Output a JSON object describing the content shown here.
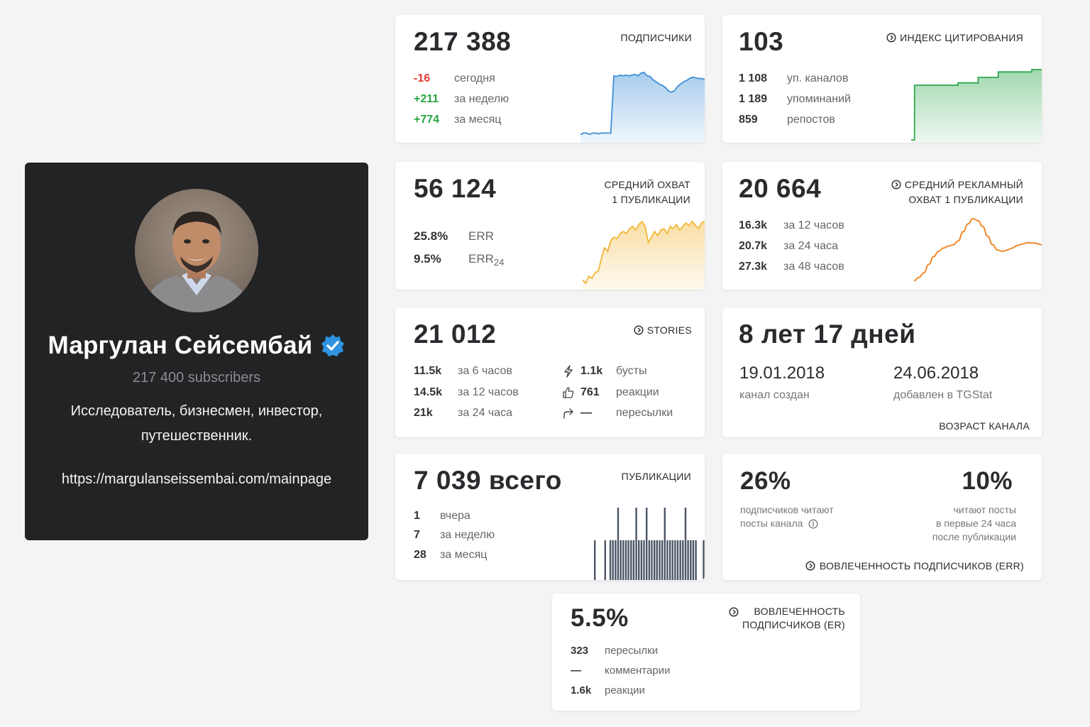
{
  "profile": {
    "name": "Маргулан Сейсембай",
    "subscribers": "217 400 subscribers",
    "description": "Исследователь, бизнесмен, инвестор, путешественник.",
    "link": "https://margulanseissembai.com/mainpage"
  },
  "subscribers": {
    "value": "217 388",
    "label": "ПОДПИСЧИКИ",
    "rows": [
      {
        "value": "-16",
        "text": "сегодня"
      },
      {
        "value": "+211",
        "text": "за неделю"
      },
      {
        "value": "+774",
        "text": "за месяц"
      }
    ]
  },
  "citation": {
    "value": "103",
    "label": "ИНДЕКС ЦИТИРОВАНИЯ",
    "rows": [
      {
        "value": "1 108",
        "text": "уп. каналов"
      },
      {
        "value": "1 189",
        "text": "упоминаний"
      },
      {
        "value": "859",
        "text": "репостов"
      }
    ]
  },
  "reach": {
    "value": "56 124",
    "label_line1": "СРЕДНИЙ ОХВАТ",
    "label_line2": "1 ПУБЛИКАЦИИ",
    "rows": [
      {
        "value": "25.8%",
        "text": "ERR"
      },
      {
        "value": "9.5%",
        "text": "ERR",
        "sub": "24"
      }
    ]
  },
  "ad_reach": {
    "value": "20 664",
    "label_line1": "СРЕДНИЙ РЕКЛАМНЫЙ",
    "label_line2": "ОХВАТ 1 ПУБЛИКАЦИИ",
    "rows": [
      {
        "value": "16.3k",
        "text": "за 12 часов"
      },
      {
        "value": "20.7k",
        "text": "за 24 часа"
      },
      {
        "value": "27.3k",
        "text": "за 48 часов"
      }
    ]
  },
  "stories": {
    "value": "21 012",
    "label": "STORIES",
    "rows": [
      {
        "value": "11.5k",
        "text": "за 6 часов"
      },
      {
        "value": "14.5k",
        "text": "за 12 часов"
      },
      {
        "value": "21k",
        "text": "за 24 часа"
      }
    ],
    "stats": [
      {
        "icon": "lightning-icon",
        "value": "1.1k",
        "text": "бусты"
      },
      {
        "icon": "thumbs-up-icon",
        "value": "761",
        "text": "реакции"
      },
      {
        "icon": "share-arrow-icon",
        "value": "—",
        "text": "пересылки"
      }
    ]
  },
  "age": {
    "value": "8 лет 17 дней",
    "created_date": "19.01.2018",
    "created_text": "канал создан",
    "added_date": "24.06.2018",
    "added_text": "добавлен в TGStat",
    "label": "ВОЗРАСТ КАНАЛА"
  },
  "publications": {
    "value": "7 039 всего",
    "label": "ПУБЛИКАЦИИ",
    "rows": [
      {
        "value": "1",
        "text": "вчера"
      },
      {
        "value": "7",
        "text": "за неделю"
      },
      {
        "value": "28",
        "text": "за месяц"
      }
    ]
  },
  "err": {
    "left_value": "26%",
    "left_line1": "подписчиков читают",
    "left_line2": "посты канала",
    "right_value": "10%",
    "right_line1": "читают посты",
    "right_line2": "в первые 24 часа",
    "right_line3": "после публикации",
    "label": "ВОВЛЕЧЕННОСТЬ ПОДПИСЧИКОВ (ERR)"
  },
  "er": {
    "value": "5.5%",
    "label_line1": "ВОВЛЕЧЕННОСТЬ",
    "label_line2": "ПОДПИСЧИКОВ (ER)",
    "rows": [
      {
        "value": "323",
        "text": "пересылки"
      },
      {
        "value": "—",
        "text": "комментарии"
      },
      {
        "value": "1.6k",
        "text": "реакции"
      }
    ]
  },
  "colors": {
    "blue": "#3d8fd6",
    "green": "#2fa84f",
    "yellow": "#f2b637",
    "orange": "#ef8a2a",
    "bars": "#4a5566"
  },
  "sparklines": {
    "subscribers": [
      0.08,
      0.1,
      0.1,
      0.08,
      0.1,
      0.1,
      0.09,
      0.1,
      0.1,
      0.1,
      0.1,
      0.94,
      0.93,
      0.95,
      0.94,
      0.95,
      0.94,
      0.95,
      0.96,
      0.94,
      0.98,
      0.99,
      0.94,
      0.93,
      0.88,
      0.85,
      0.82,
      0.8,
      0.77,
      0.72,
      0.7,
      0.72,
      0.78,
      0.82,
      0.85,
      0.87,
      0.9,
      0.92,
      0.91,
      0.9,
      0.9,
      0.89
    ],
    "citation": [
      0.0,
      0.7,
      0.7,
      0.7,
      0.7,
      0.7,
      0.7,
      0.7,
      0.7,
      0.7,
      0.7,
      0.7,
      0.7,
      0.7,
      0.73,
      0.73,
      0.73,
      0.73,
      0.73,
      0.73,
      0.8,
      0.8,
      0.8,
      0.8,
      0.8,
      0.8,
      0.87,
      0.87,
      0.87,
      0.87,
      0.87,
      0.87,
      0.87,
      0.87,
      0.87,
      0.87,
      0.9,
      0.9,
      0.9,
      0.9
    ],
    "reach": [
      0.1,
      0.05,
      0.15,
      0.12,
      0.2,
      0.22,
      0.4,
      0.55,
      0.5,
      0.65,
      0.7,
      0.68,
      0.75,
      0.78,
      0.75,
      0.82,
      0.85,
      0.8,
      0.88,
      0.92,
      0.85,
      0.62,
      0.7,
      0.78,
      0.72,
      0.8,
      0.82,
      0.75,
      0.85,
      0.82,
      0.88,
      0.8,
      0.85,
      0.9,
      0.86,
      0.92,
      0.87,
      0.82,
      0.9,
      0.92
    ],
    "ad_reach": [
      0.05,
      0.1,
      0.17,
      0.3,
      0.42,
      0.5,
      0.55,
      0.58,
      0.6,
      0.66,
      0.8,
      0.92,
      1.0,
      0.97,
      0.88,
      0.73,
      0.6,
      0.52,
      0.5,
      0.52,
      0.55,
      0.59,
      0.61,
      0.63,
      0.63,
      0.62,
      0.6
    ],
    "publications": [
      0,
      0,
      0,
      0.55,
      0,
      0,
      0,
      0.55,
      0,
      0.55,
      0.55,
      0.55,
      1.0,
      0.55,
      0.55,
      0.55,
      0.55,
      0.55,
      0.55,
      1.0,
      0.55,
      0.55,
      0.55,
      1.0,
      0.55,
      0.55,
      0.55,
      0.55,
      0.55,
      0.55,
      1.0,
      0.55,
      0.55,
      0.55,
      0.55,
      0.55,
      0.55,
      0.55,
      1.0,
      0.55,
      0.55,
      0.55,
      0.55,
      0,
      0,
      0.55
    ]
  }
}
